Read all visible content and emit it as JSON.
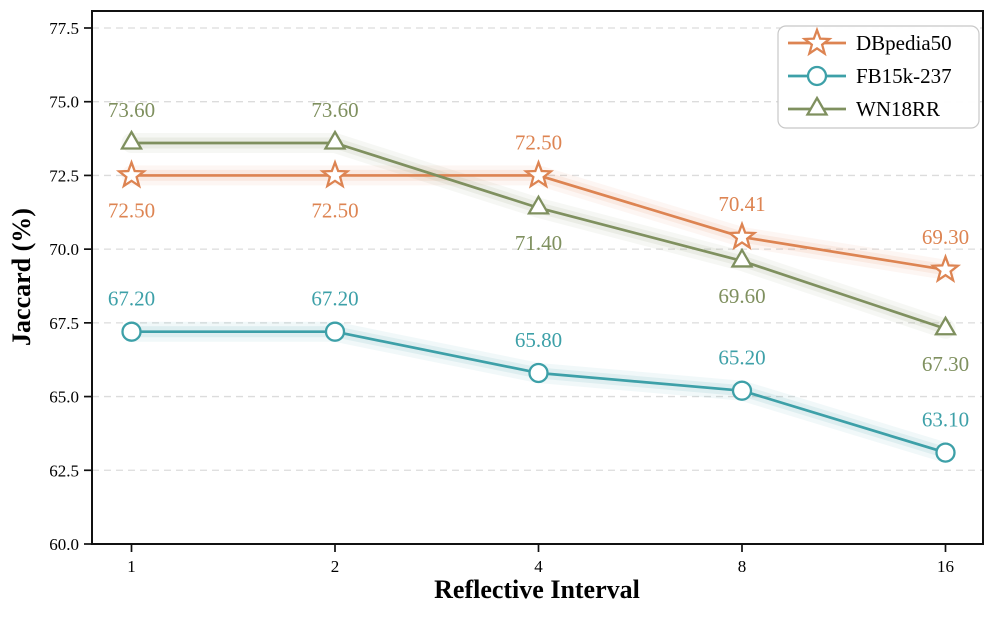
{
  "chart_data": {
    "type": "line",
    "title": "",
    "xlabel": "Reflective Interval",
    "ylabel": "Jaccard (%)",
    "categories": [
      1,
      2,
      4,
      8,
      16
    ],
    "x_tick_labels": [
      "1",
      "2",
      "4",
      "8",
      "16"
    ],
    "y_ticks": [
      60.0,
      62.5,
      65.0,
      67.5,
      70.0,
      72.5,
      75.0,
      77.5
    ],
    "y_tick_labels": [
      "60.0",
      "62.5",
      "65.0",
      "67.5",
      "70.0",
      "72.5",
      "75.0",
      "77.5"
    ],
    "ylim": [
      60.0,
      78.1
    ],
    "grid": "horizontal-dashed",
    "legend_position": "upper right",
    "series": [
      {
        "name": "DBpedia50",
        "marker": "star",
        "color": "#DD8452",
        "values": [
          72.5,
          72.5,
          72.5,
          70.41,
          69.3
        ],
        "point_labels": [
          "72.50",
          "72.50",
          "72.50",
          "70.41",
          "69.30"
        ],
        "label_pos": [
          "below",
          "below",
          "above",
          "above",
          "above"
        ]
      },
      {
        "name": "FB15k-237",
        "marker": "circle",
        "color": "#3DA0A8",
        "values": [
          67.2,
          67.2,
          65.8,
          65.2,
          63.1
        ],
        "point_labels": [
          "67.20",
          "67.20",
          "65.80",
          "65.20",
          "63.10"
        ],
        "label_pos": [
          "above",
          "above",
          "above",
          "above",
          "above"
        ]
      },
      {
        "name": "WN18RR",
        "marker": "triangle",
        "color": "#7F905F",
        "values": [
          73.6,
          73.6,
          71.4,
          69.6,
          67.3
        ],
        "point_labels": [
          "73.60",
          "73.60",
          "71.40",
          "69.60",
          "67.30"
        ],
        "label_pos": [
          "above",
          "above",
          "below",
          "below",
          "below"
        ]
      }
    ],
    "colors": {
      "background": "#FFFFFF",
      "grid": "#DCDCDC",
      "axis": "#111111",
      "legend_border": "#C8C8C8"
    }
  }
}
